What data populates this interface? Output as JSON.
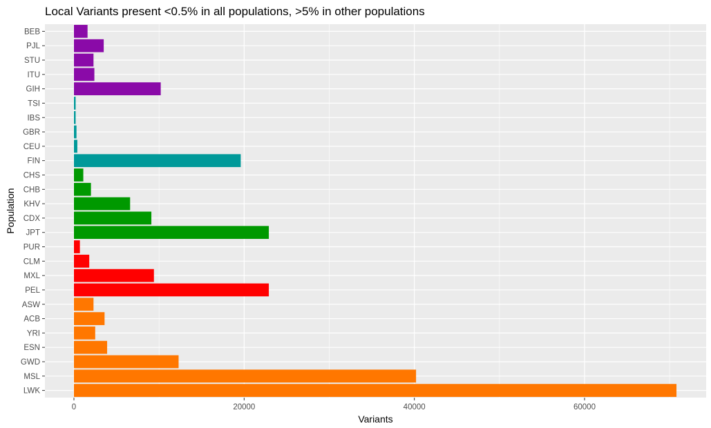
{
  "chart_data": {
    "type": "bar",
    "orientation": "horizontal",
    "title": "Local Variants present <0.5% in all populations, >5% in other populations",
    "xlabel": "Variants",
    "ylabel": "Population",
    "xlim": [
      0,
      72000
    ],
    "x_ticks": [
      {
        "value": 0,
        "label": "0"
      },
      {
        "value": 20000,
        "label": "20000"
      },
      {
        "value": 40000,
        "label": "40000"
      },
      {
        "value": 60000,
        "label": "60000"
      }
    ],
    "grid": true,
    "legend": "none",
    "background": "#ebebeb",
    "bars": [
      {
        "category": "BEB",
        "value": 1600,
        "color": "#8a0aa8"
      },
      {
        "category": "PJL",
        "value": 3500,
        "color": "#8a0aa8"
      },
      {
        "category": "STU",
        "value": 2300,
        "color": "#8a0aa8"
      },
      {
        "category": "ITU",
        "value": 2400,
        "color": "#8a0aa8"
      },
      {
        "category": "GIH",
        "value": 10200,
        "color": "#8a0aa8"
      },
      {
        "category": "TSI",
        "value": 200,
        "color": "#009999"
      },
      {
        "category": "IBS",
        "value": 200,
        "color": "#009999"
      },
      {
        "category": "GBR",
        "value": 300,
        "color": "#009999"
      },
      {
        "category": "CEU",
        "value": 400,
        "color": "#009999"
      },
      {
        "category": "FIN",
        "value": 19600,
        "color": "#009999"
      },
      {
        "category": "CHS",
        "value": 1100,
        "color": "#009900"
      },
      {
        "category": "CHB",
        "value": 2000,
        "color": "#009900"
      },
      {
        "category": "KHV",
        "value": 6600,
        "color": "#009900"
      },
      {
        "category": "CDX",
        "value": 9100,
        "color": "#009900"
      },
      {
        "category": "JPT",
        "value": 22900,
        "color": "#009900"
      },
      {
        "category": "PUR",
        "value": 700,
        "color": "#ff0000"
      },
      {
        "category": "CLM",
        "value": 1800,
        "color": "#ff0000"
      },
      {
        "category": "MXL",
        "value": 9400,
        "color": "#ff0000"
      },
      {
        "category": "PEL",
        "value": 22900,
        "color": "#ff0000"
      },
      {
        "category": "ASW",
        "value": 2300,
        "color": "#ff7700"
      },
      {
        "category": "ACB",
        "value": 3600,
        "color": "#ff7700"
      },
      {
        "category": "YRI",
        "value": 2500,
        "color": "#ff7700"
      },
      {
        "category": "ESN",
        "value": 3900,
        "color": "#ff7700"
      },
      {
        "category": "GWD",
        "value": 12300,
        "color": "#ff7700"
      },
      {
        "category": "MSL",
        "value": 40200,
        "color": "#ff7700"
      },
      {
        "category": "LWK",
        "value": 70800,
        "color": "#ff7700"
      }
    ]
  }
}
